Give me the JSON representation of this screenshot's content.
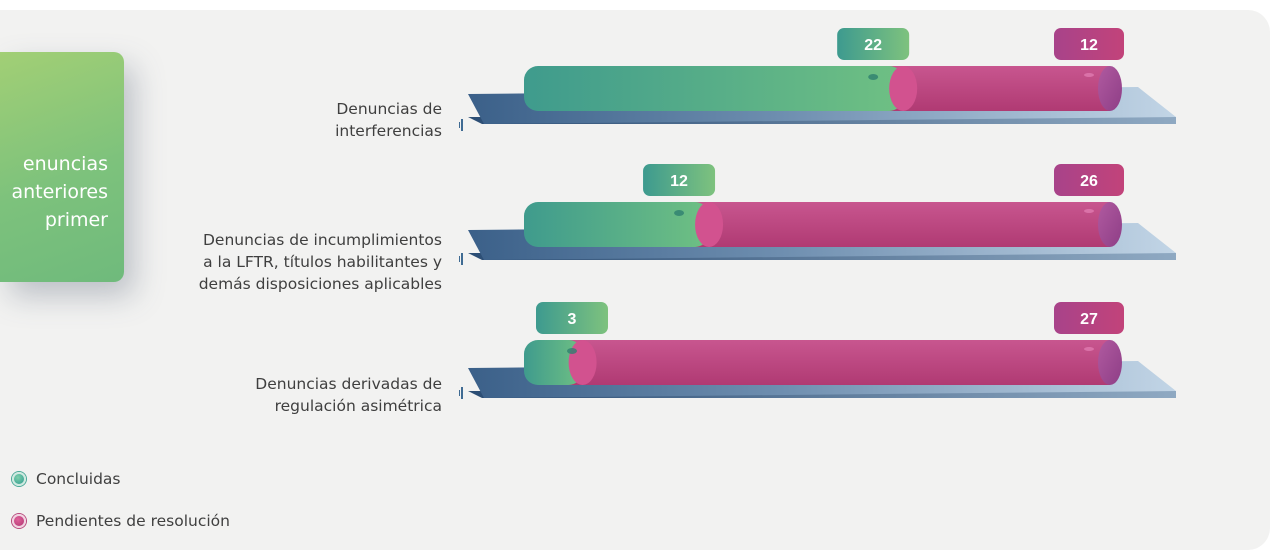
{
  "side_card": {
    "text": "enuncias\nanteriores\nprimer"
  },
  "chart_data": {
    "type": "bar",
    "stacked": true,
    "orientation": "horizontal",
    "categories": [
      "Denuncias de\ninterferencias",
      "Denuncias de incumplimientos\na la LFTR, títulos habilitantes y\ndemás disposiciones aplicables",
      "Denuncias derivadas de\nregulación asimétrica"
    ],
    "series": [
      {
        "name": "Concluidas",
        "values": [
          22,
          12,
          3
        ]
      },
      {
        "name": "Pendientes de resolución",
        "values": [
          12,
          26,
          27
        ]
      }
    ],
    "colors": {
      "Concluidas": "#3e9a8c",
      "Pendientes de resolución": "#bb3f7b"
    },
    "legend_position": "bottom-left",
    "grid": false
  },
  "legend": [
    {
      "label": "Concluidas",
      "color": "#3e9a8c"
    },
    {
      "label": "Pendientes de resolución",
      "color": "#bb3f7b"
    }
  ]
}
